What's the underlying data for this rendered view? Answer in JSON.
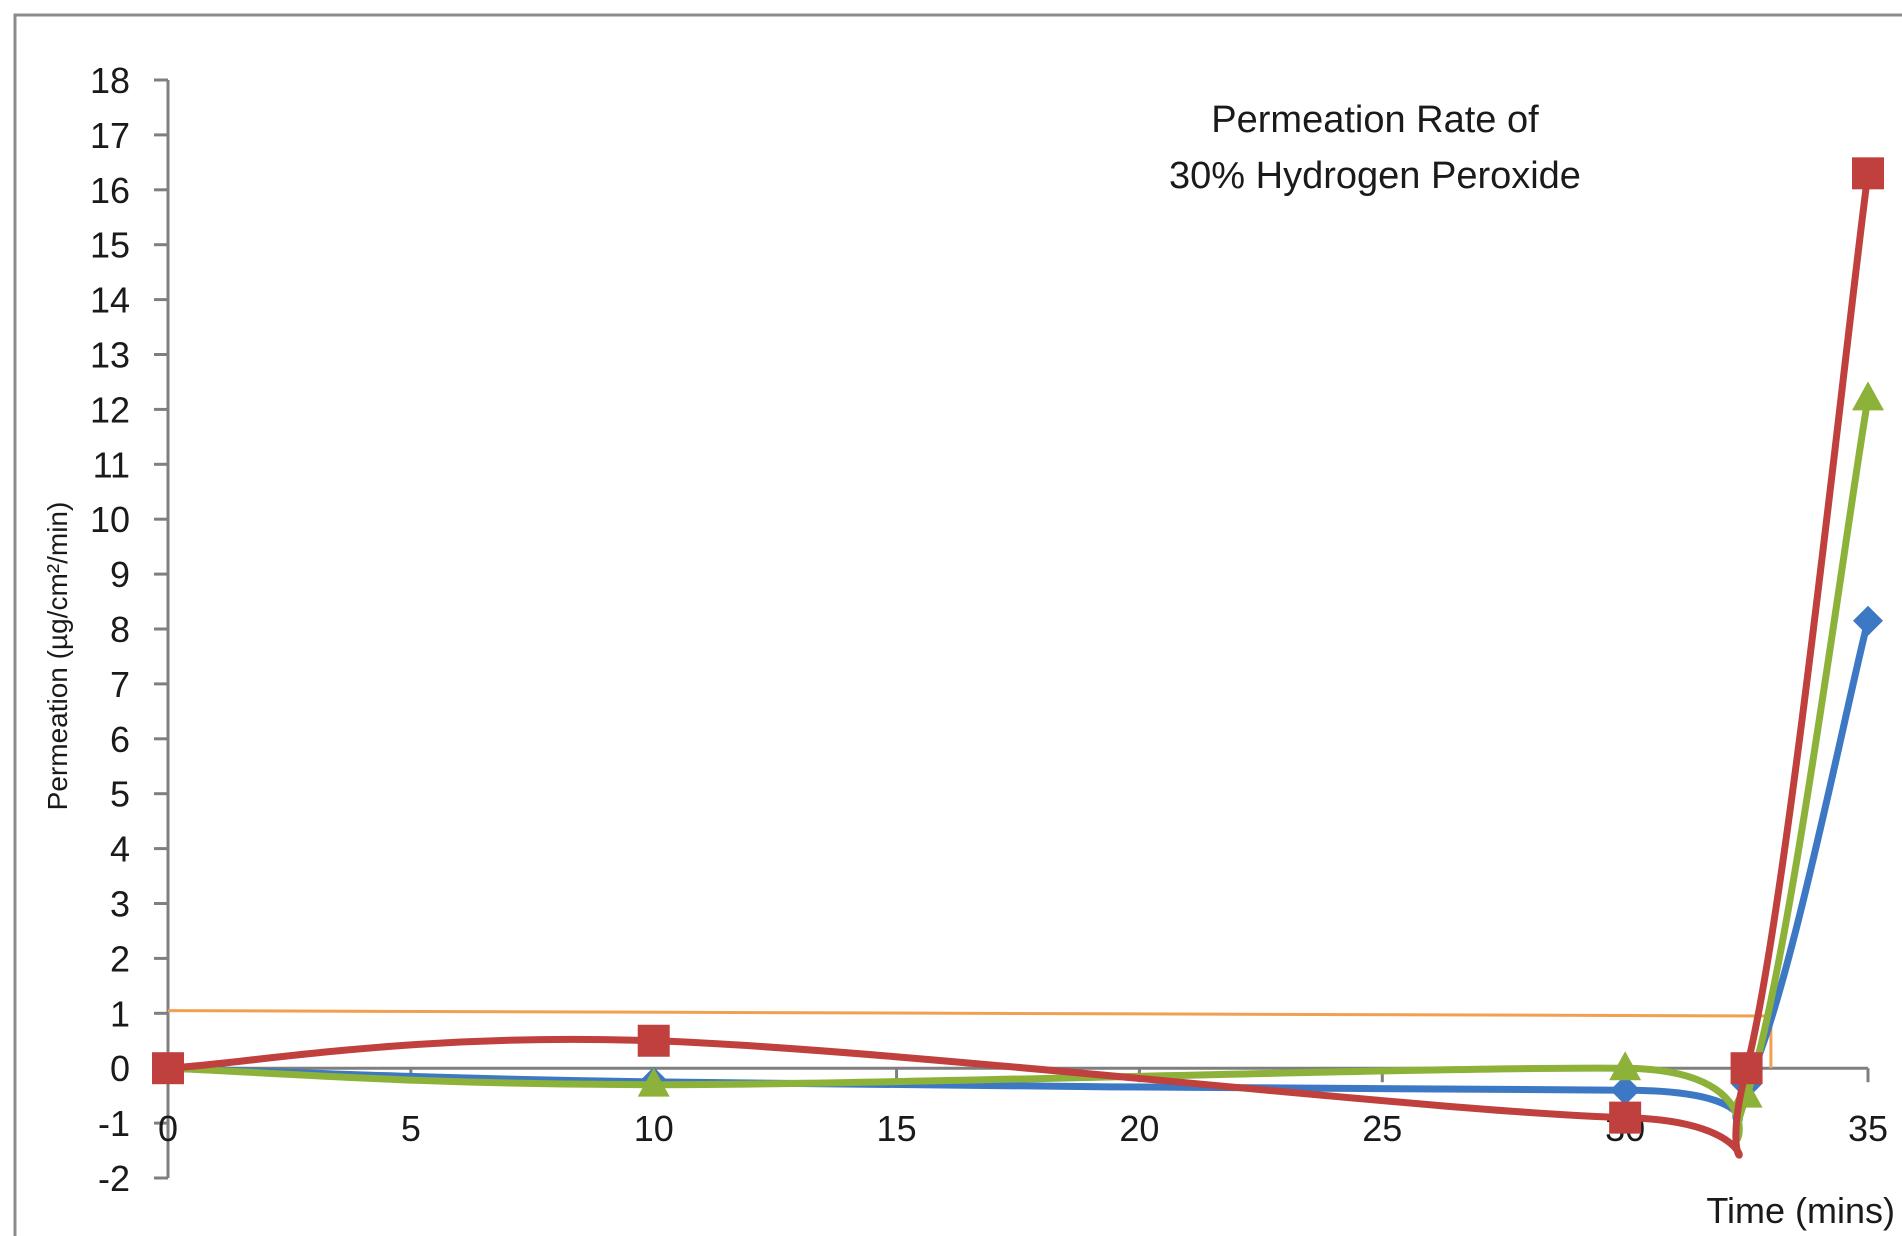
{
  "chart_data": {
    "type": "line",
    "title_lines": [
      "Permeation Rate of",
      "30% Hydrogen Peroxide"
    ],
    "xlabel": "Time (mins)",
    "ylabel": "Permeation (µg/cm²/min)",
    "xlim": [
      0,
      35
    ],
    "ylim": [
      -2,
      18
    ],
    "x_ticks": [
      "0",
      "5",
      "10",
      "15",
      "20",
      "25",
      "30",
      "35"
    ],
    "y_ticks": [
      "18",
      "17",
      "16",
      "15",
      "14",
      "13",
      "12",
      "11",
      "10",
      "9",
      "8",
      "7",
      "6",
      "5",
      "4",
      "3",
      "2",
      "1",
      "0",
      "-1",
      "-2"
    ],
    "grid": false,
    "legend": "none",
    "reference_line": {
      "points": [
        [
          0,
          1.05
        ],
        [
          33,
          0.95
        ],
        [
          33,
          0
        ]
      ],
      "color": "#f0a050"
    },
    "series": [
      {
        "marker": "diamond",
        "color": "#3d78c4",
        "points": [
          [
            0,
            0
          ],
          [
            10,
            -0.25
          ],
          [
            30,
            -0.4
          ],
          [
            32.5,
            -0.3
          ],
          [
            35,
            8.15
          ]
        ]
      },
      {
        "marker": "triangle",
        "color": "#8db23a",
        "points": [
          [
            0,
            0
          ],
          [
            10,
            -0.3
          ],
          [
            30,
            0
          ],
          [
            32.5,
            -0.5
          ],
          [
            35,
            12.2
          ]
        ]
      },
      {
        "marker": "square",
        "color": "#c0403e",
        "points": [
          [
            0,
            0
          ],
          [
            10,
            0.5
          ],
          [
            30,
            -0.9
          ],
          [
            32.5,
            0
          ],
          [
            35,
            16.3
          ]
        ]
      }
    ]
  }
}
